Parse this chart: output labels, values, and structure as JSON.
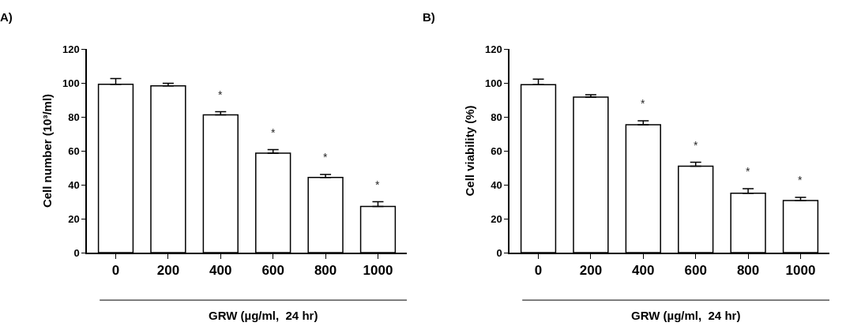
{
  "chart_data": [
    {
      "type": "bar",
      "title": "A)",
      "xlabel": "GRW (µg/ml,  24 hr)",
      "ylabel": "Cell number (10³/ml)",
      "categories": [
        "0",
        "200",
        "400",
        "600",
        "800",
        "1000"
      ],
      "series": [
        {
          "color": "#ffffff",
          "values": [
            99.2,
            98.3,
            81.2,
            58.6,
            44.3,
            27.2
          ],
          "errors": [
            [
              99.2,
              102.6
            ],
            [
              98.3,
              99.8
            ],
            [
              81.2,
              83
            ],
            [
              58.6,
              60.7
            ],
            [
              44.3,
              46
            ],
            [
              27.2,
              30
            ]
          ]
        }
      ],
      "ylim": [
        0,
        120
      ],
      "yticks": [
        0,
        20,
        40,
        60,
        80,
        100,
        120
      ],
      "grid": false,
      "annotations": [
        "*",
        "*",
        "*",
        "*"
      ]
    },
    {
      "type": "bar",
      "title": "B)",
      "xlabel": "GRW (µg/ml,  24 hr)",
      "ylabel": "Cell viability (%)",
      "categories": [
        "0",
        "200",
        "400",
        "600",
        "800",
        "1000"
      ],
      "series": [
        {
          "color": "#ffffff",
          "values": [
            99,
            91.6,
            75.4,
            50.9,
            35,
            30.7
          ],
          "errors": [
            [
              99,
              102.2
            ],
            [
              91.6,
              93
            ],
            [
              75.4,
              77.7
            ],
            [
              50.9,
              53.2
            ],
            [
              35,
              37.7
            ],
            [
              30.7,
              32.6
            ]
          ]
        }
      ],
      "ylim": [
        0,
        120
      ],
      "yticks": [
        0,
        20,
        40,
        60,
        80,
        100,
        120
      ],
      "grid": false,
      "annotations": [
        "*",
        "*",
        "*",
        "*"
      ]
    }
  ]
}
